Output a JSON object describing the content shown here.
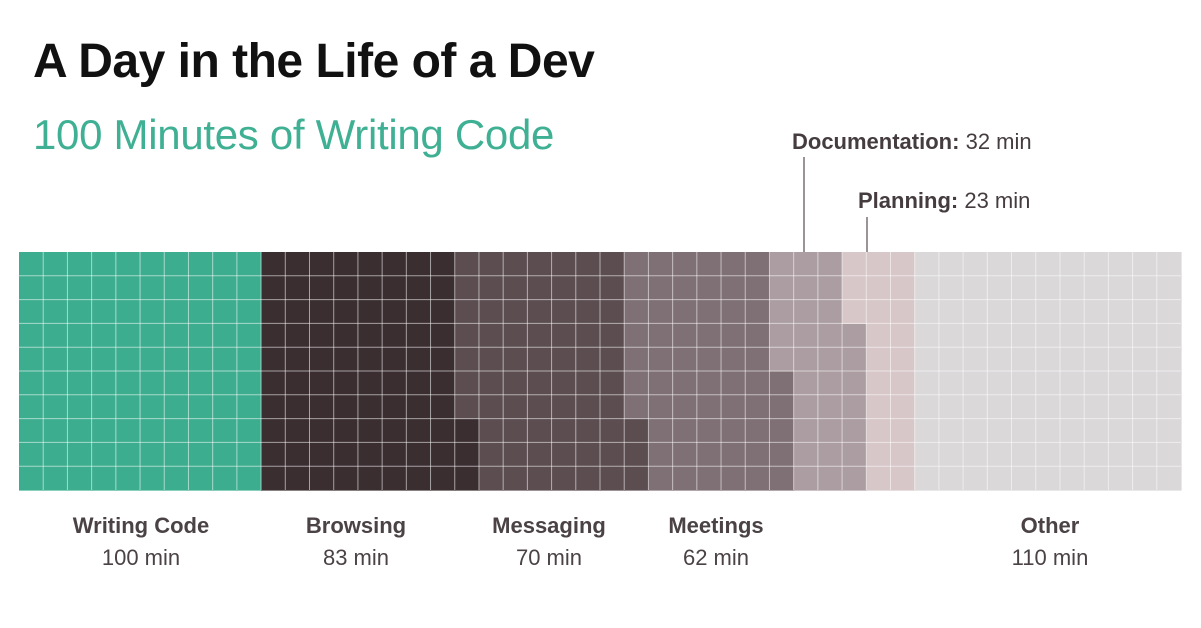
{
  "title": "A Day in the Life of a Dev",
  "subtitle": "100 Minutes of Writing Code",
  "chart_data": {
    "type": "waffle",
    "unit": "min",
    "rows": 10,
    "categories": [
      {
        "name": "Writing Code",
        "value": 100,
        "value_label": "100 min",
        "color": "#3dad8f"
      },
      {
        "name": "Browsing",
        "value": 83,
        "value_label": "83 min",
        "color": "#3a2e31"
      },
      {
        "name": "Messaging",
        "value": 70,
        "value_label": "70 min",
        "color": "#5b4d50"
      },
      {
        "name": "Meetings",
        "value": 62,
        "value_label": "62 min",
        "color": "#7f7075"
      },
      {
        "name": "Documentation",
        "value": 32,
        "value_label": "32 min",
        "color": "#ab9da1"
      },
      {
        "name": "Planning",
        "value": 23,
        "value_label": "23 min",
        "color": "#d7c7c9"
      },
      {
        "name": "Other",
        "value": 110,
        "value_label": "110 min",
        "color": "#dad8d9"
      }
    ]
  }
}
